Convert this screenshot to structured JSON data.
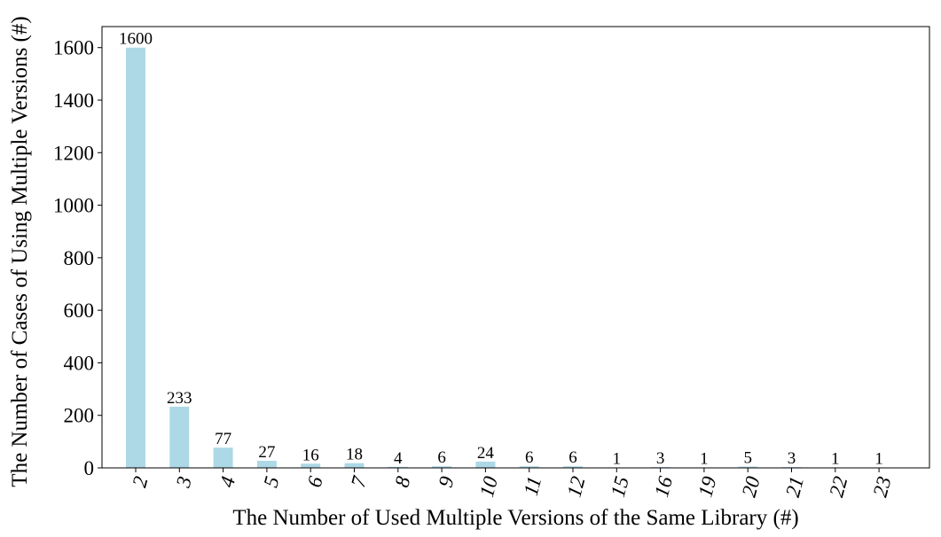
{
  "chart_data": {
    "type": "bar",
    "title": "",
    "xlabel": "The Number of Used Multiple Versions of the Same Library (#)",
    "ylabel": "The Number of Cases of Using Multiple Versions (#)",
    "categories": [
      "2",
      "3",
      "4",
      "5",
      "6",
      "7",
      "8",
      "9",
      "10",
      "11",
      "12",
      "15",
      "16",
      "19",
      "20",
      "21",
      "22",
      "23"
    ],
    "values": [
      1600,
      233,
      77,
      27,
      16,
      18,
      4,
      6,
      24,
      6,
      6,
      1,
      3,
      1,
      5,
      3,
      1,
      1
    ],
    "ylim": [
      0,
      1680
    ],
    "yticks": [
      0,
      200,
      400,
      600,
      800,
      1000,
      1200,
      1400,
      1600
    ],
    "bar_color": "#add8e6",
    "grid": false,
    "legend": "none",
    "data_labels": true,
    "x_tick_rotation_deg": 75
  }
}
